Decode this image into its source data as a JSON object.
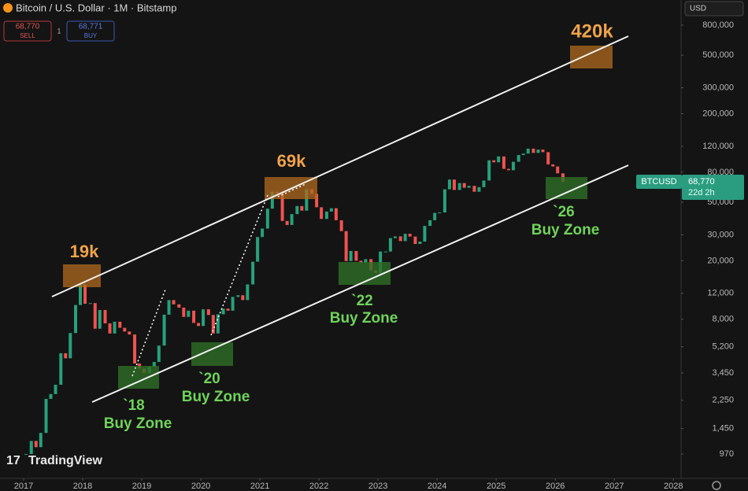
{
  "header": {
    "title": "Bitcoin / U.S. Dollar · 1M · Bitstamp",
    "sell_price": "68,770",
    "sell_label": "SELL",
    "spread": "1",
    "buy_price": "68,771",
    "buy_label": "BUY",
    "currency": "USD"
  },
  "price_tag": {
    "symbol": "BTCUSD",
    "price": "68,770",
    "countdown": "22d 2h"
  },
  "watermark": "TradingView",
  "chart_data": {
    "type": "candlestick",
    "log": true,
    "grid": false,
    "up_color": "#26a17b",
    "down_color": "#ef5350",
    "x": [
      2017.04,
      2017.13,
      2017.21,
      2017.29,
      2017.38,
      2017.46,
      2017.54,
      2017.63,
      2017.71,
      2017.79,
      2017.88,
      2017.96,
      2018.04,
      2018.13,
      2018.21,
      2018.29,
      2018.38,
      2018.46,
      2018.54,
      2018.63,
      2018.71,
      2018.79,
      2018.88,
      2018.96,
      2019.04,
      2019.13,
      2019.21,
      2019.29,
      2019.38,
      2019.46,
      2019.54,
      2019.63,
      2019.71,
      2019.79,
      2019.88,
      2019.96,
      2020.04,
      2020.13,
      2020.21,
      2020.29,
      2020.38,
      2020.46,
      2020.54,
      2020.63,
      2020.71,
      2020.79,
      2020.88,
      2020.96,
      2021.04,
      2021.13,
      2021.21,
      2021.29,
      2021.38,
      2021.46,
      2021.54,
      2021.63,
      2021.71,
      2021.79,
      2021.88,
      2021.96,
      2022.04,
      2022.13,
      2022.21,
      2022.29,
      2022.38,
      2022.46,
      2022.54,
      2022.63,
      2022.71,
      2022.79,
      2022.88,
      2022.96,
      2023.04,
      2023.13,
      2023.21,
      2023.29,
      2023.38,
      2023.46,
      2023.54,
      2023.63,
      2023.71,
      2023.79,
      2023.88,
      2023.96,
      2024.04,
      2024.13,
      2024.21,
      2024.29,
      2024.38,
      2024.46,
      2024.54,
      2024.63,
      2024.71,
      2024.79,
      2024.88,
      2024.96,
      2025.04,
      2025.13,
      2025.21,
      2025.29,
      2025.38,
      2025.46,
      2025.54,
      2025.63,
      2025.71,
      2025.79,
      2025.88,
      2025.96,
      2026.04,
      2026.13
    ],
    "values": [
      970,
      1190,
      1080,
      1350,
      2300,
      2480,
      2870,
      4700,
      4340,
      6450,
      10000,
      13800,
      10200,
      10300,
      6900,
      9250,
      7500,
      6400,
      7700,
      7000,
      6600,
      6300,
      4000,
      3700,
      3450,
      3800,
      4100,
      5300,
      8600,
      10800,
      10100,
      9600,
      8300,
      9150,
      7550,
      7200,
      9350,
      8550,
      6400,
      8650,
      9450,
      9150,
      11350,
      11650,
      10800,
      13800,
      19700,
      29000,
      33100,
      45200,
      58800,
      57700,
      37300,
      35000,
      41500,
      47100,
      43800,
      61300,
      57000,
      46200,
      38500,
      43200,
      45500,
      37700,
      31800,
      19900,
      23300,
      20000,
      19400,
      20500,
      17200,
      16500,
      23100,
      23100,
      28500,
      29300,
      27200,
      30500,
      29200,
      26000,
      27000,
      34500,
      37700,
      42300,
      42600,
      61200,
      71300,
      60600,
      67500,
      62700,
      64600,
      58900,
      63300,
      70200,
      96400,
      93400,
      102400,
      84300,
      82500,
      94200,
      104600,
      107100,
      115700,
      108200,
      114000,
      109500,
      90400,
      87500,
      78600,
      68770
    ],
    "xlim": [
      2016.6,
      2028.13
    ],
    "xticks": [
      2017,
      2018,
      2019,
      2020,
      2021,
      2022,
      2023,
      2024,
      2025,
      2026,
      2027,
      2028
    ],
    "ylim": [
      662,
      1186000
    ],
    "yticks": [
      {
        "value": 800000,
        "label": "800,000"
      },
      {
        "value": 500000,
        "label": "500,000"
      },
      {
        "value": 300000,
        "label": "300,000"
      },
      {
        "value": 200000,
        "label": "200,000"
      },
      {
        "value": 120000,
        "label": "120,000"
      },
      {
        "value": 80000,
        "label": "80,000"
      },
      {
        "value": 50000,
        "label": "50,000"
      },
      {
        "value": 30000,
        "label": "30,000"
      },
      {
        "value": 20000,
        "label": "20,000"
      },
      {
        "value": 12000,
        "label": "12,000"
      },
      {
        "value": 8000,
        "label": "8,000"
      },
      {
        "value": 5200,
        "label": "5,200"
      },
      {
        "value": 3450,
        "label": "3,450"
      },
      {
        "value": 2250,
        "label": "2,250"
      },
      {
        "value": 1450,
        "label": "1,450"
      },
      970
    ],
    "annotations": [
      "19k",
      "69k",
      "420k",
      "`18",
      "Buy Zone",
      "`20",
      "Buy Zone",
      "`22",
      "Buy Zone",
      "`26",
      "Buy Zone"
    ]
  }
}
